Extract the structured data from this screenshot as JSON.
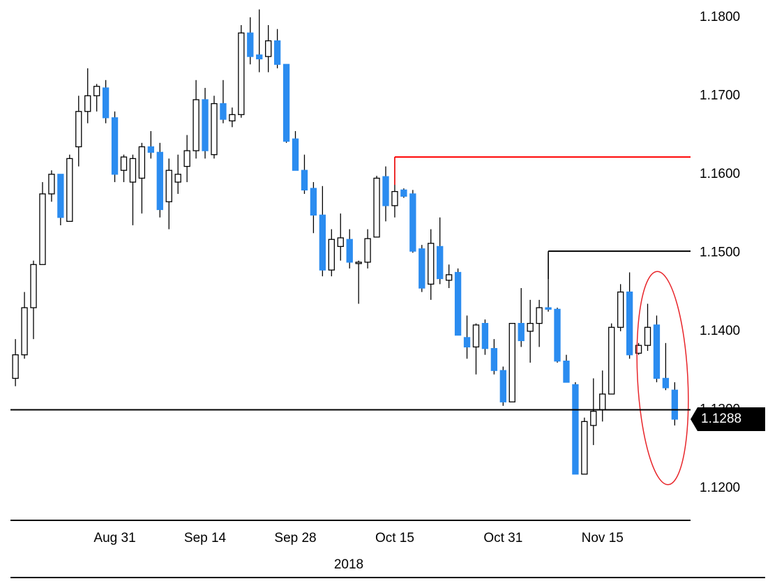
{
  "chart_data": {
    "type": "candlestick",
    "x_label": "2018",
    "up_color": "#ffffff",
    "down_color": "#2b8cf0",
    "xlim": [
      -0.55,
      74.75
    ],
    "xticks": [
      {
        "value": 11,
        "label": "Aug 31"
      },
      {
        "value": 21,
        "label": "Sep 14"
      },
      {
        "value": 31,
        "label": "Sep 28"
      },
      {
        "value": 42,
        "label": "Oct 15"
      },
      {
        "value": 54,
        "label": "Oct 31"
      },
      {
        "value": 65,
        "label": "Nov 15"
      }
    ],
    "ylim": [
      1.116,
      1.1822
    ],
    "yticks": [
      {
        "value": 1.12,
        "label": "1.1200"
      },
      {
        "value": 1.13,
        "label": "1.1300"
      },
      {
        "value": 1.14,
        "label": "1.1400"
      },
      {
        "value": 1.15,
        "label": "1.1500"
      },
      {
        "value": 1.16,
        "label": "1.1600"
      },
      {
        "value": 1.17,
        "label": "1.1700"
      },
      {
        "value": 1.18,
        "label": "1.1800"
      }
    ],
    "open": [
      1.134,
      1.137,
      1.143,
      1.1485,
      1.1575,
      1.16,
      1.154,
      1.1635,
      1.168,
      1.17,
      1.171,
      1.1672,
      1.1605,
      1.159,
      1.1595,
      1.1635,
      1.1628,
      1.1565,
      1.159,
      1.161,
      1.163,
      1.1695,
      1.1625,
      1.169,
      1.1668,
      1.1676,
      1.178,
      1.1752,
      1.175,
      1.177,
      1.174,
      1.1645,
      1.1605,
      1.1582,
      1.1548,
      1.1478,
      1.1508,
      1.1517,
      1.1488,
      1.1488,
      1.152,
      1.1597,
      1.156,
      1.158,
      1.1575,
      1.1505,
      1.146,
      1.1508,
      1.1465,
      1.1475,
      1.1392,
      1.138,
      1.141,
      1.1378,
      1.135,
      1.131,
      1.141,
      1.14,
      1.141,
      1.143,
      1.1428,
      1.1362,
      1.1332,
      1.1218,
      1.128,
      1.13,
      1.132,
      1.1405,
      1.145,
      1.1372,
      1.1382,
      1.1408,
      1.134,
      1.1325
    ],
    "high": [
      1.139,
      1.145,
      1.149,
      1.159,
      1.1605,
      1.16,
      1.1625,
      1.17,
      1.1735,
      1.1715,
      1.172,
      1.168,
      1.1625,
      1.1625,
      1.164,
      1.1655,
      1.164,
      1.162,
      1.1625,
      1.165,
      1.172,
      1.171,
      1.17,
      1.172,
      1.1685,
      1.179,
      1.18,
      1.181,
      1.179,
      1.1785,
      1.174,
      1.1655,
      1.1625,
      1.159,
      1.1585,
      1.153,
      1.155,
      1.153,
      1.149,
      1.153,
      1.1598,
      1.161,
      1.1622,
      1.1582,
      1.158,
      1.151,
      1.153,
      1.1545,
      1.1485,
      1.148,
      1.142,
      1.141,
      1.1415,
      1.139,
      1.1355,
      1.141,
      1.1455,
      1.144,
      1.144,
      1.15,
      1.143,
      1.137,
      1.1335,
      1.129,
      1.134,
      1.135,
      1.141,
      1.146,
      1.1475,
      1.1385,
      1.1435,
      1.142,
      1.1385,
      1.1335
    ],
    "low": [
      1.133,
      1.1365,
      1.139,
      1.1485,
      1.1565,
      1.1535,
      1.154,
      1.161,
      1.1665,
      1.168,
      1.1665,
      1.159,
      1.159,
      1.1535,
      1.155,
      1.162,
      1.1545,
      1.153,
      1.1575,
      1.159,
      1.162,
      1.162,
      1.162,
      1.1665,
      1.166,
      1.1672,
      1.174,
      1.173,
      1.173,
      1.1735,
      1.164,
      1.1605,
      1.1575,
      1.1525,
      1.147,
      1.147,
      1.149,
      1.148,
      1.1435,
      1.148,
      1.152,
      1.154,
      1.1545,
      1.157,
      1.15,
      1.145,
      1.144,
      1.146,
      1.1455,
      1.1395,
      1.1365,
      1.1345,
      1.137,
      1.1345,
      1.1305,
      1.131,
      1.138,
      1.136,
      1.138,
      1.1425,
      1.136,
      1.1335,
      1.1218,
      1.1218,
      1.1255,
      1.1285,
      1.132,
      1.14,
      1.1365,
      1.137,
      1.1375,
      1.1335,
      1.1325,
      1.128
    ],
    "close": [
      1.137,
      1.143,
      1.1485,
      1.1575,
      1.16,
      1.1545,
      1.162,
      1.168,
      1.17,
      1.1712,
      1.1672,
      1.16,
      1.1622,
      1.162,
      1.1635,
      1.1628,
      1.1555,
      1.1605,
      1.16,
      1.163,
      1.1695,
      1.163,
      1.169,
      1.167,
      1.1676,
      1.178,
      1.175,
      1.1747,
      1.177,
      1.174,
      1.1642,
      1.1605,
      1.158,
      1.1548,
      1.1478,
      1.1517,
      1.1519,
      1.1488,
      1.1488,
      1.1518,
      1.1595,
      1.156,
      1.1578,
      1.1572,
      1.1502,
      1.1455,
      1.1512,
      1.1467,
      1.1472,
      1.1395,
      1.138,
      1.1408,
      1.1378,
      1.135,
      1.131,
      1.141,
      1.1388,
      1.141,
      1.143,
      1.1428,
      1.1362,
      1.1335,
      1.1218,
      1.1285,
      1.1298,
      1.132,
      1.1405,
      1.145,
      1.137,
      1.1382,
      1.1405,
      1.134,
      1.1328,
      1.1288
    ],
    "levels": [
      {
        "value": 1.1622,
        "color": "#ff0000",
        "from": 42
      },
      {
        "value": 1.1502,
        "color": "#000000",
        "from": 59
      },
      {
        "value": 1.13,
        "color": "#000000",
        "from": -0.55
      }
    ],
    "last_price": {
      "value": 1.1288,
      "label": "1.1288"
    }
  }
}
